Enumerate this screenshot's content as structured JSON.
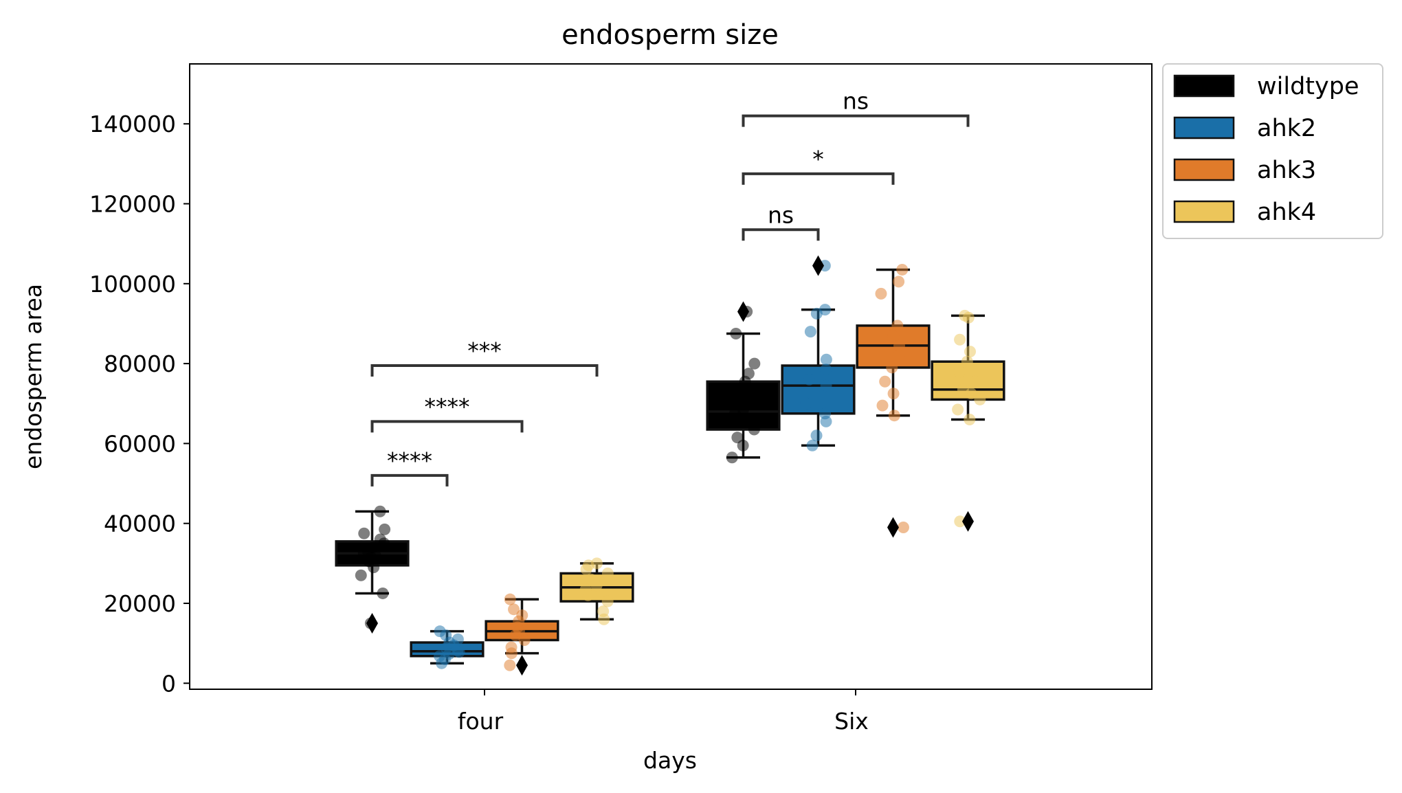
{
  "chart_data": {
    "type": "box",
    "title": "endosperm size",
    "xlabel": "days",
    "ylabel": "endosperm area",
    "ylim": [
      -1500,
      155000
    ],
    "yticks": [
      0,
      20000,
      40000,
      60000,
      80000,
      100000,
      120000,
      140000
    ],
    "ytick_labels": [
      "0",
      "20000",
      "40000",
      "60000",
      "80000",
      "100000",
      "120000",
      "140000"
    ],
    "categories": [
      "four",
      "Six"
    ],
    "legend_position": "outside-top-right",
    "grid": false,
    "series": [
      {
        "name": "wildtype",
        "color": "#000000",
        "boxes": [
          {
            "whisker_low": 22500,
            "q1": 29500,
            "median": 32500,
            "q3": 35500,
            "whisker_high": 43000,
            "outliers": [
              15000
            ],
            "points": [
              22500,
              27000,
              29000,
              30500,
              31500,
              32000,
              32500,
              33000,
              34000,
              35000,
              36000,
              37500,
              38500,
              43000,
              15000
            ]
          },
          {
            "whisker_low": 56500,
            "q1": 63500,
            "median": 68000,
            "q3": 75500,
            "whisker_high": 87500,
            "outliers": [
              93000
            ],
            "points": [
              56500,
              59500,
              61500,
              63500,
              65500,
              67500,
              68500,
              70500,
              72500,
              75500,
              77500,
              80000,
              87500,
              93000
            ]
          }
        ]
      },
      {
        "name": "ahk2",
        "color": "#1a6fa8",
        "boxes": [
          {
            "whisker_low": 5000,
            "q1": 6800,
            "median": 8000,
            "q3": 10200,
            "whisker_high": 13000,
            "outliers": [],
            "points": [
              5000,
              6000,
              6800,
              7300,
              7800,
              8200,
              8800,
              9500,
              10200,
              11000,
              12000,
              13000
            ]
          },
          {
            "whisker_low": 59500,
            "q1": 67500,
            "median": 74500,
            "q3": 79500,
            "whisker_high": 93500,
            "outliers": [
              104500
            ],
            "points": [
              59500,
              62000,
              65500,
              67500,
              70000,
              72500,
              74500,
              76000,
              78500,
              81000,
              88000,
              92500,
              93500,
              104500
            ]
          }
        ]
      },
      {
        "name": "ahk3",
        "color": "#e07b2a",
        "boxes": [
          {
            "whisker_low": 7500,
            "q1": 10800,
            "median": 13000,
            "q3": 15500,
            "whisker_high": 21000,
            "outliers": [
              4500
            ],
            "points": [
              4500,
              7500,
              9000,
              10800,
              12000,
              13000,
              14000,
              15500,
              17000,
              18500,
              21000
            ]
          },
          {
            "whisker_low": 67000,
            "q1": 79000,
            "median": 84500,
            "q3": 89500,
            "whisker_high": 103500,
            "outliers": [
              39000
            ],
            "points": [
              39000,
              67000,
              69500,
              72500,
              75500,
              79000,
              82000,
              84500,
              87000,
              89500,
              97500,
              100500,
              103500
            ]
          }
        ]
      },
      {
        "name": "ahk4",
        "color": "#ecc55a",
        "boxes": [
          {
            "whisker_low": 16000,
            "q1": 20500,
            "median": 24000,
            "q3": 27500,
            "whisker_high": 30000,
            "outliers": [],
            "points": [
              16000,
              18000,
              20500,
              22000,
              23500,
              24500,
              26000,
              27500,
              28500,
              29500,
              30000
            ]
          },
          {
            "whisker_low": 66000,
            "q1": 71000,
            "median": 73500,
            "q3": 80500,
            "whisker_high": 92000,
            "outliers": [
              40500
            ],
            "points": [
              40500,
              66000,
              68500,
              71000,
              72500,
              73500,
              75500,
              78000,
              80500,
              83000,
              86000,
              91500,
              92000
            ]
          }
        ]
      }
    ],
    "annotations": [
      {
        "category": 0,
        "from": "wildtype",
        "to": "ahk2",
        "label": "****",
        "y": 52000
      },
      {
        "category": 0,
        "from": "wildtype",
        "to": "ahk3",
        "label": "****",
        "y": 65500
      },
      {
        "category": 0,
        "from": "wildtype",
        "to": "ahk4",
        "label": "***",
        "y": 79500
      },
      {
        "category": 1,
        "from": "wildtype",
        "to": "ahk2",
        "label": "ns",
        "y": 113500
      },
      {
        "category": 1,
        "from": "wildtype",
        "to": "ahk3",
        "label": "*",
        "y": 127500
      },
      {
        "category": 1,
        "from": "wildtype",
        "to": "ahk4",
        "label": "ns",
        "y": 142000
      }
    ]
  }
}
